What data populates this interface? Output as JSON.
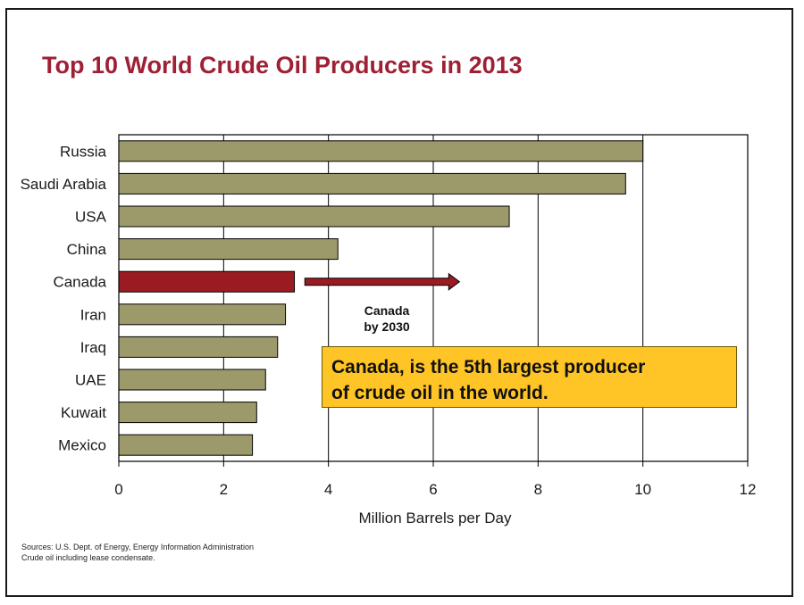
{
  "title": "Top 10 World Crude Oil Producers in 2013",
  "colors": {
    "bar": "#9c9a6a",
    "highlight": "#9a1c22",
    "title": "#9e2035",
    "callout": "#ffc425"
  },
  "chart_data": {
    "type": "bar",
    "orientation": "horizontal",
    "categories": [
      "Russia",
      "Saudi Arabia",
      "USA",
      "China",
      "Canada",
      "Iran",
      "Iraq",
      "UAE",
      "Kuwait",
      "Mexico"
    ],
    "values": [
      10.0,
      9.67,
      7.45,
      4.18,
      3.35,
      3.18,
      3.03,
      2.8,
      2.63,
      2.55
    ],
    "highlight": "Canada",
    "xlabel": "Million Barrels per Day",
    "xlim": [
      0,
      12
    ],
    "xticks": [
      0,
      2,
      4,
      6,
      8,
      10,
      12
    ],
    "grid": "vertical",
    "arrow": {
      "from": 3.55,
      "to": 6.5,
      "category": "Canada"
    }
  },
  "annotation": {
    "arrow_label_line1": "Canada",
    "arrow_label_line2": "by 2030"
  },
  "callout": {
    "line1": "Canada, is the 5th largest producer",
    "line2": "of crude oil in the world."
  },
  "sources": {
    "line1": "Sources: U.S. Dept. of Energy, Energy Information Administration",
    "line2": "Crude oil including lease condensate."
  }
}
